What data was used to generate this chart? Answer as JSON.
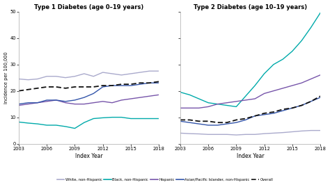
{
  "title1": "Type 1 Diabetes (age 0–19 years)",
  "title2": "Type 2 Diabetes (age 10–19 years)",
  "xlabel": "Index Year",
  "ylabel": "Incidence per 100,000",
  "ylim": [
    0,
    50
  ],
  "yticks": [
    0,
    10,
    20,
    30,
    40,
    50
  ],
  "years": [
    2003,
    2004,
    2005,
    2006,
    2007,
    2008,
    2009,
    2010,
    2011,
    2012,
    2013,
    2014,
    2015,
    2016,
    2017,
    2018
  ],
  "xticks": [
    2003,
    2006,
    2009,
    2012,
    2015,
    2018
  ],
  "colors": {
    "white": "#aaaacc",
    "black": "#00aaaa",
    "hispanic": "#7755aa",
    "asian": "#3355aa",
    "overall": "#111111"
  },
  "t1": {
    "white": [
      24.5,
      24.2,
      24.5,
      25.5,
      25.5,
      25.0,
      25.5,
      26.5,
      25.5,
      27.0,
      26.5,
      26.0,
      26.5,
      27.0,
      27.5,
      27.5
    ],
    "black": [
      8.2,
      7.8,
      7.5,
      7.0,
      7.0,
      6.5,
      5.8,
      8.0,
      9.5,
      9.8,
      10.0,
      10.0,
      9.5,
      9.5,
      9.5,
      9.5
    ],
    "hispanic": [
      14.5,
      15.0,
      15.5,
      16.0,
      16.5,
      15.5,
      15.0,
      15.0,
      15.5,
      16.0,
      15.5,
      16.5,
      17.0,
      17.5,
      18.0,
      18.5
    ],
    "asian": [
      15.0,
      15.5,
      15.5,
      16.5,
      16.5,
      16.0,
      16.5,
      17.5,
      19.0,
      21.5,
      22.0,
      22.0,
      22.0,
      22.5,
      23.0,
      23.0
    ],
    "overall": [
      20.0,
      20.5,
      21.0,
      21.5,
      21.5,
      21.0,
      21.5,
      21.5,
      21.5,
      22.0,
      22.0,
      22.5,
      22.5,
      23.0,
      23.0,
      23.5
    ]
  },
  "t2": {
    "white": [
      4.0,
      3.8,
      3.7,
      3.5,
      3.5,
      3.5,
      3.3,
      3.5,
      3.5,
      3.8,
      4.0,
      4.2,
      4.5,
      4.8,
      5.0,
      5.0
    ],
    "black": [
      19.5,
      18.5,
      17.0,
      15.5,
      15.0,
      14.5,
      14.0,
      18.0,
      22.0,
      26.5,
      30.0,
      32.0,
      35.0,
      39.0,
      44.0,
      49.5
    ],
    "hispanic": [
      13.5,
      13.5,
      13.5,
      14.0,
      15.0,
      15.5,
      16.0,
      16.5,
      17.0,
      19.0,
      20.0,
      21.0,
      22.0,
      23.0,
      24.5,
      26.0
    ],
    "asian": [
      8.5,
      8.0,
      7.5,
      7.0,
      7.0,
      7.5,
      8.0,
      9.0,
      10.5,
      11.0,
      11.5,
      12.5,
      13.5,
      14.5,
      16.0,
      17.5
    ],
    "overall": [
      9.0,
      9.0,
      8.5,
      8.5,
      8.0,
      8.0,
      9.0,
      9.5,
      10.5,
      11.5,
      12.0,
      13.0,
      13.5,
      14.5,
      16.0,
      18.0
    ]
  },
  "legend_labels": [
    "White, non-Hispanic",
    "Black, non-Hispanic",
    "Hispanic",
    "Asian/Pacific Islander, non-Hispanic",
    "Overall"
  ],
  "background_color": "#ffffff"
}
